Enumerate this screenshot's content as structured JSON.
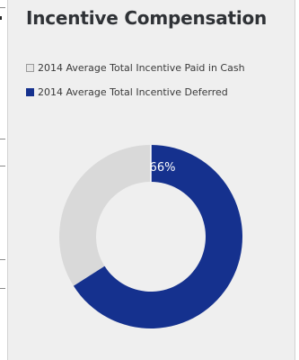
{
  "panel": {
    "title": "Incentive Compensation"
  },
  "colors": {
    "deferred": "#15318e",
    "cash": "#d9d9d9",
    "panel_background": "#efefef",
    "title_text": "#2f3236"
  },
  "chart_data": {
    "type": "pie",
    "style": "donut",
    "title": "Incentive Compensation",
    "legend_position": "top-left",
    "slices": [
      {
        "name": "2014 Average Total Incentive Paid in Cash",
        "value": 34,
        "label": ""
      },
      {
        "name": "2014 Average Total Incentive Deferred",
        "value": 66,
        "label": "66%"
      }
    ]
  }
}
